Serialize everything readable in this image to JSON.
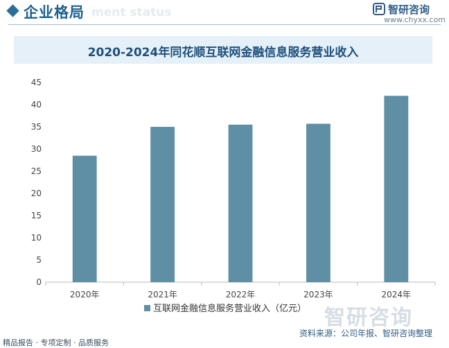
{
  "header": {
    "title": "企业格局",
    "subtitle": "ment status"
  },
  "brand": {
    "name": "智研咨询",
    "url": "www.chyxx.com"
  },
  "chart_data": {
    "type": "bar",
    "title": "2020-2024年同花顺互联网金融信息服务营业收入",
    "categories": [
      "2020年",
      "2021年",
      "2022年",
      "2023年",
      "2024年"
    ],
    "series": [
      {
        "name": "互联网金融信息服务营业收入（亿元）",
        "values": [
          28.5,
          35.0,
          35.5,
          35.7,
          42.0
        ],
        "color": "#5f8fa5"
      }
    ],
    "ylim": [
      0,
      45
    ],
    "yticks": [
      "0",
      "5",
      "10",
      "15",
      "20",
      "25",
      "30",
      "35",
      "40",
      "45"
    ],
    "grid": false,
    "legend": "bottom-center"
  },
  "footer": {
    "left": "精品报告 · 专项定制 · 品质服务",
    "source": "资料来源：公司年报、智研咨询整理",
    "watermark": "智研咨询"
  }
}
